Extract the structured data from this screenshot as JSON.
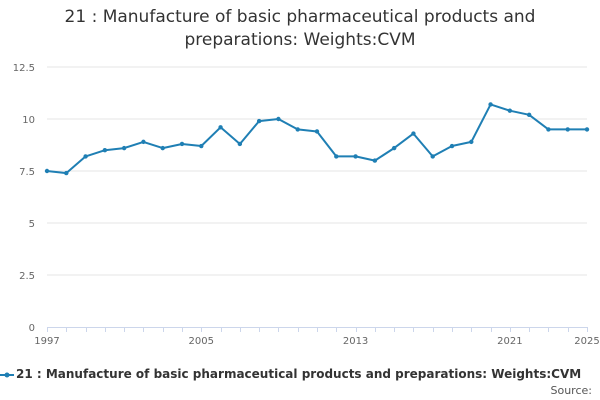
{
  "chart_data": {
    "type": "line",
    "title_lines": [
      "21 : Manufacture of basic pharmaceutical products and",
      "preparations: Weights:CVM"
    ],
    "xlabel": "",
    "ylabel": "",
    "x": [
      1997,
      1998,
      1999,
      2000,
      2001,
      2002,
      2003,
      2004,
      2005,
      2006,
      2007,
      2008,
      2009,
      2010,
      2011,
      2012,
      2013,
      2014,
      2015,
      2016,
      2017,
      2018,
      2019,
      2020,
      2021,
      2022,
      2023,
      2024,
      2025
    ],
    "x_tick_labels": [
      "1997",
      "2005",
      "2013",
      "2021",
      "2025"
    ],
    "xlim": [
      1997,
      2025
    ],
    "y_ticks": [
      0,
      2.5,
      5,
      7.5,
      10,
      12.5
    ],
    "y_tick_labels": [
      "0",
      "2.5",
      "5",
      "7.5",
      "10",
      "12.5"
    ],
    "ylim": [
      0,
      12.5
    ],
    "grid": "horizontal",
    "legend_position": "bottom",
    "series": [
      {
        "name": "21 : Manufacture of basic pharmaceutical products and preparations: Weights:CVM",
        "color": "#1f7fb4",
        "values": [
          7.5,
          7.4,
          8.2,
          8.5,
          8.6,
          8.9,
          8.6,
          8.8,
          8.7,
          9.6,
          8.8,
          9.9,
          10.0,
          9.5,
          9.4,
          8.2,
          8.2,
          8.0,
          8.6,
          9.3,
          8.2,
          8.7,
          8.9,
          10.7,
          10.4,
          10.2,
          9.5,
          9.5,
          9.5
        ]
      }
    ]
  },
  "source": "Source:"
}
